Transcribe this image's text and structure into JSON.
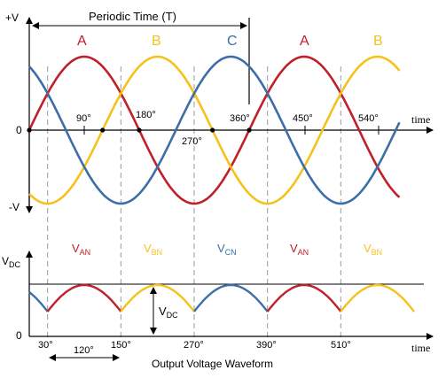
{
  "colors": {
    "phase_a": "#c0202a",
    "phase_b": "#f5c21c",
    "phase_c": "#3c6ea8",
    "axis": "#000000",
    "dash": "#9a9a9a"
  },
  "upper": {
    "y_top_label": "+V",
    "y_zero_label": "0",
    "y_bottom_label": "-V",
    "x_label": "time",
    "period_label": "Periodic Time (T)",
    "phase_labels": [
      "A",
      "B",
      "C",
      "A",
      "B"
    ],
    "angle_ticks": [
      "90°",
      "180°",
      "270°",
      "360°",
      "450°",
      "540°"
    ]
  },
  "lower": {
    "y_top_label": "V",
    "y_top_sub": "DC",
    "y_zero_label": "0",
    "x_label": "time",
    "peak_labels": [
      {
        "main": "V",
        "sub": "AN"
      },
      {
        "main": "V",
        "sub": "BN"
      },
      {
        "main": "V",
        "sub": "CN"
      },
      {
        "main": "V",
        "sub": "AN"
      },
      {
        "main": "V",
        "sub": "BN"
      }
    ],
    "vdc_label": "V",
    "vdc_sub": "DC",
    "angle_ticks": [
      "30°",
      "150°",
      "270°",
      "390°",
      "510°"
    ],
    "span_label": "120°",
    "caption": "Output Voltage Waveform"
  }
}
